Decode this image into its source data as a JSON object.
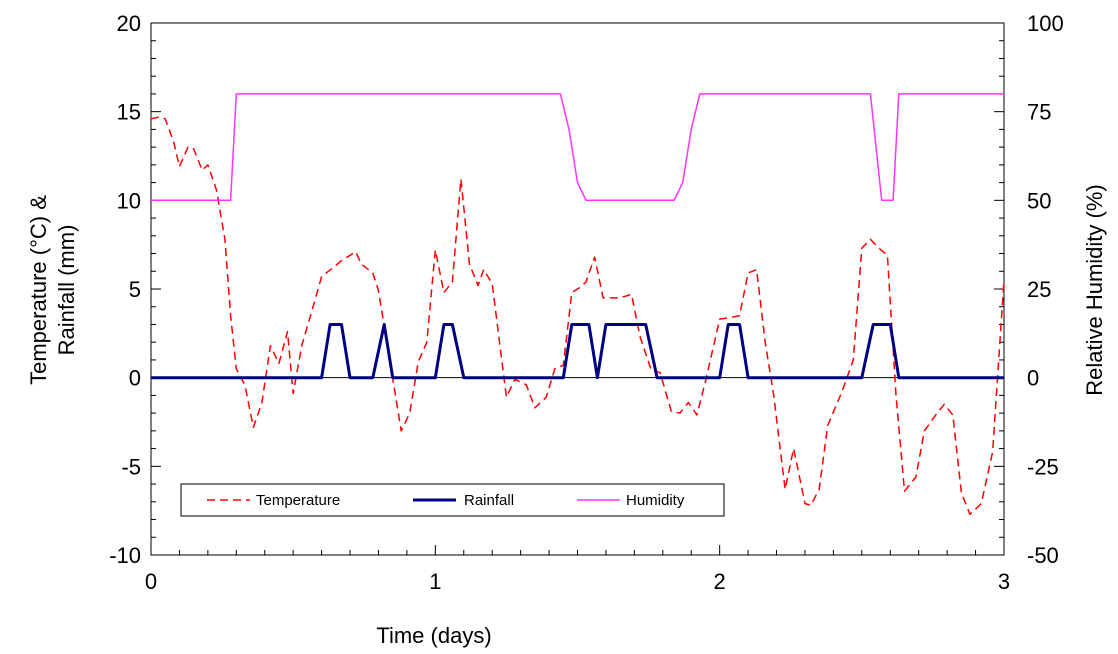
{
  "chart_data": {
    "type": "line",
    "xlabel": "Time (days)",
    "ylabel_left_line1": "Temperature (°C) &",
    "ylabel_left_line2": "Rainfall (mm)",
    "ylabel_right": "Relative Humidity (%)",
    "xlim": [
      0,
      3
    ],
    "ylim_left": [
      -10,
      20
    ],
    "ylim_right": [
      -50,
      100
    ],
    "x_ticks": [
      0,
      1,
      2,
      3
    ],
    "y_left_ticks": [
      -10,
      -5,
      0,
      5,
      10,
      15,
      20
    ],
    "y_right_ticks": [
      -50,
      -25,
      0,
      25,
      50,
      75,
      100
    ],
    "grid": false,
    "zero_line": true,
    "legend_position": "bottom-left",
    "series": [
      {
        "name": "Temperature",
        "axis": "left",
        "color": "#ff0000",
        "style": "dashed",
        "points": [
          [
            0,
            14.6
          ],
          [
            0.03,
            14.7
          ],
          [
            0.05,
            14.6
          ],
          [
            0.08,
            13.3
          ],
          [
            0.1,
            11.9
          ],
          [
            0.13,
            13.0
          ],
          [
            0.15,
            12.9
          ],
          [
            0.18,
            11.7
          ],
          [
            0.2,
            12.0
          ],
          [
            0.23,
            10.6
          ],
          [
            0.26,
            7.8
          ],
          [
            0.28,
            3.5
          ],
          [
            0.3,
            0.5
          ],
          [
            0.33,
            -0.4
          ],
          [
            0.36,
            -2.8
          ],
          [
            0.39,
            -1.4
          ],
          [
            0.42,
            1.8
          ],
          [
            0.45,
            0.8
          ],
          [
            0.48,
            2.6
          ],
          [
            0.5,
            -0.9
          ],
          [
            0.53,
            1.8
          ],
          [
            0.57,
            4.0
          ],
          [
            0.6,
            5.7
          ],
          [
            0.64,
            6.2
          ],
          [
            0.67,
            6.6
          ],
          [
            0.72,
            7.1
          ],
          [
            0.74,
            6.4
          ],
          [
            0.78,
            5.9
          ],
          [
            0.8,
            4.9
          ],
          [
            0.83,
            1.9
          ],
          [
            0.86,
            -1.0
          ],
          [
            0.88,
            -3.0
          ],
          [
            0.91,
            -2.0
          ],
          [
            0.94,
            0.9
          ],
          [
            0.97,
            2.0
          ],
          [
            1.0,
            7.2
          ],
          [
            1.03,
            4.8
          ],
          [
            1.06,
            5.4
          ],
          [
            1.09,
            11.2
          ],
          [
            1.12,
            6.4
          ],
          [
            1.15,
            5.2
          ],
          [
            1.17,
            6.1
          ],
          [
            1.2,
            5.3
          ],
          [
            1.25,
            -1.1
          ],
          [
            1.28,
            -0.1
          ],
          [
            1.32,
            -0.4
          ],
          [
            1.35,
            -1.7
          ],
          [
            1.39,
            -1.1
          ],
          [
            1.42,
            0.5
          ],
          [
            1.45,
            0.7
          ],
          [
            1.48,
            4.8
          ],
          [
            1.51,
            5.1
          ],
          [
            1.53,
            5.4
          ],
          [
            1.56,
            6.8
          ],
          [
            1.59,
            4.5
          ],
          [
            1.65,
            4.5
          ],
          [
            1.69,
            4.7
          ],
          [
            1.72,
            2.3
          ],
          [
            1.76,
            0.4
          ],
          [
            1.79,
            0.3
          ],
          [
            1.83,
            -1.9
          ],
          [
            1.86,
            -2.0
          ],
          [
            1.89,
            -1.4
          ],
          [
            1.92,
            -2.1
          ],
          [
            1.95,
            -0.2
          ],
          [
            2.0,
            3.3
          ],
          [
            2.04,
            3.4
          ],
          [
            2.07,
            3.5
          ],
          [
            2.1,
            5.9
          ],
          [
            2.13,
            6.1
          ],
          [
            2.16,
            2.0
          ],
          [
            2.19,
            -1.0
          ],
          [
            2.23,
            -6.3
          ],
          [
            2.26,
            -4.0
          ],
          [
            2.3,
            -7.1
          ],
          [
            2.32,
            -7.2
          ],
          [
            2.35,
            -6.3
          ],
          [
            2.38,
            -2.7
          ],
          [
            2.43,
            -0.8
          ],
          [
            2.47,
            1.0
          ],
          [
            2.5,
            7.3
          ],
          [
            2.53,
            7.8
          ],
          [
            2.56,
            7.3
          ],
          [
            2.59,
            6.9
          ],
          [
            2.62,
            -1.0
          ],
          [
            2.65,
            -6.4
          ],
          [
            2.69,
            -5.6
          ],
          [
            2.72,
            -3.0
          ],
          [
            2.76,
            -2.1
          ],
          [
            2.79,
            -1.5
          ],
          [
            2.82,
            -2.1
          ],
          [
            2.85,
            -6.5
          ],
          [
            2.88,
            -7.7
          ],
          [
            2.92,
            -7.1
          ],
          [
            2.96,
            -4.2
          ],
          [
            3.0,
            5.5
          ]
        ]
      },
      {
        "name": "Rainfall",
        "axis": "left",
        "color": "#000080",
        "style": "solid",
        "points": [
          [
            0,
            0
          ],
          [
            0.6,
            0
          ],
          [
            0.63,
            3
          ],
          [
            0.67,
            3
          ],
          [
            0.7,
            0
          ],
          [
            0.78,
            0
          ],
          [
            0.82,
            3
          ],
          [
            0.85,
            0
          ],
          [
            1.0,
            0
          ],
          [
            1.03,
            3
          ],
          [
            1.06,
            3
          ],
          [
            1.1,
            0
          ],
          [
            1.45,
            0
          ],
          [
            1.48,
            3
          ],
          [
            1.54,
            3
          ],
          [
            1.57,
            0
          ],
          [
            1.6,
            3
          ],
          [
            1.74,
            3
          ],
          [
            1.78,
            0
          ],
          [
            2.0,
            0
          ],
          [
            2.03,
            3
          ],
          [
            2.07,
            3
          ],
          [
            2.1,
            0
          ],
          [
            2.5,
            0
          ],
          [
            2.54,
            3
          ],
          [
            2.6,
            3
          ],
          [
            2.63,
            0
          ],
          [
            3.0,
            0
          ]
        ]
      },
      {
        "name": "Humidity",
        "axis": "right",
        "color": "#ff33ff",
        "style": "solid",
        "points": [
          [
            0,
            50
          ],
          [
            0.28,
            50
          ],
          [
            0.3,
            80
          ],
          [
            1.44,
            80
          ],
          [
            1.47,
            70
          ],
          [
            1.5,
            55
          ],
          [
            1.53,
            50
          ],
          [
            1.84,
            50
          ],
          [
            1.87,
            55
          ],
          [
            1.9,
            70
          ],
          [
            1.93,
            80
          ],
          [
            2.53,
            80
          ],
          [
            2.57,
            50
          ],
          [
            2.61,
            50
          ],
          [
            2.63,
            80
          ],
          [
            3.0,
            80
          ]
        ]
      }
    ]
  }
}
